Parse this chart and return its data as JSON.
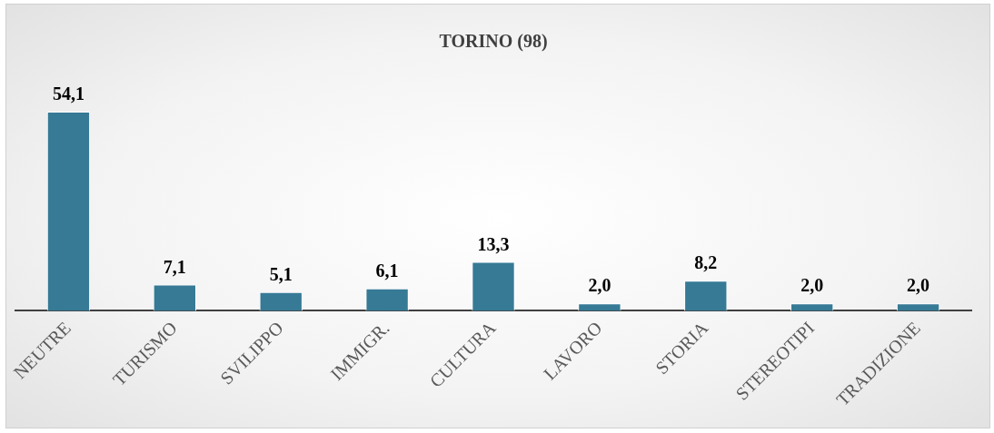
{
  "chart_data": {
    "type": "bar",
    "title": "TORINO (98)",
    "categories": [
      "NEUTRE",
      "TURISMO",
      "SVILIPPO",
      "IMMIGR.",
      "CULTURA",
      "LAVORO",
      "STORIA",
      "STEREOTIPI",
      "TRADIZIONE"
    ],
    "values": [
      54.1,
      7.1,
      5.1,
      6.1,
      13.3,
      2.0,
      8.2,
      2.0,
      2.0
    ],
    "value_labels": [
      "54,1",
      "7,1",
      "5,1",
      "6,1",
      "13,3",
      "2,0",
      "8,2",
      "2,0",
      "2,0"
    ],
    "color": "#367a96",
    "grid": false,
    "legend": false
  }
}
